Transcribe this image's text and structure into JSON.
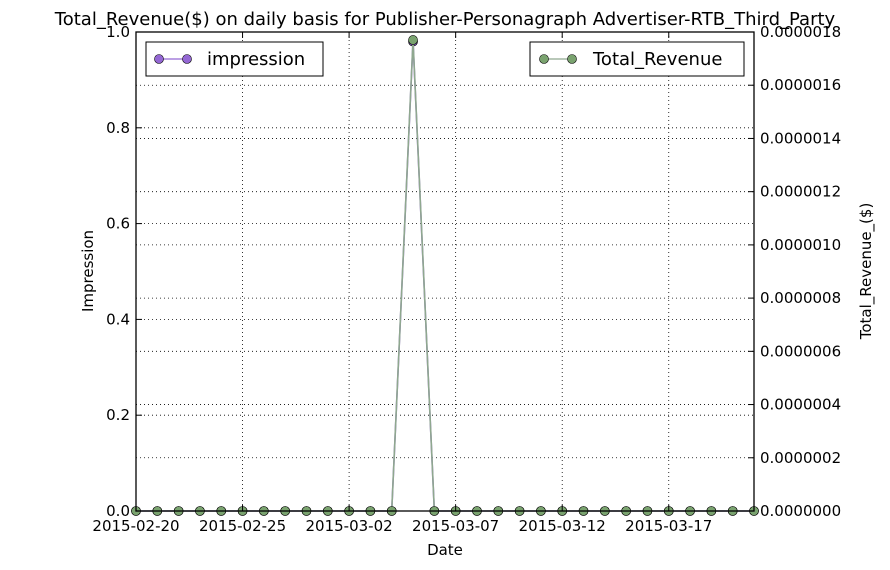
{
  "chart_data": {
    "type": "line",
    "title": "Total_Revenue($) on daily basis for Publisher-Personagraph Advertiser-RTB_Third_Party",
    "xlabel": "Date",
    "ylabel_left": "Impression",
    "ylabel_right": "Total_Revenue_($)",
    "x_tick_labels": [
      "2015-02-20",
      "2015-02-25",
      "2015-03-02",
      "2015-03-07",
      "2015-03-12",
      "2015-03-17"
    ],
    "y_left_tick_labels": [
      "0.0",
      "0.2",
      "0.4",
      "0.6",
      "0.8",
      "1.0"
    ],
    "y_right_tick_labels": [
      "0.0000000",
      "0.0000002",
      "0.0000004",
      "0.0000006",
      "0.0000008",
      "0.0000010",
      "0.0000012",
      "0.0000014",
      "0.0000016",
      "0.0000018"
    ],
    "ylim_left": [
      0,
      1.0
    ],
    "ylim_right": [
      0,
      1.8e-06
    ],
    "xlim": [
      "2015-02-20",
      "2015-03-21"
    ],
    "grid": true,
    "x": [
      "2015-02-20",
      "2015-02-21",
      "2015-02-22",
      "2015-02-23",
      "2015-02-24",
      "2015-02-25",
      "2015-02-26",
      "2015-02-27",
      "2015-02-28",
      "2015-03-01",
      "2015-03-02",
      "2015-03-03",
      "2015-03-04",
      "2015-03-05",
      "2015-03-06",
      "2015-03-07",
      "2015-03-08",
      "2015-03-09",
      "2015-03-10",
      "2015-03-11",
      "2015-03-12",
      "2015-03-13",
      "2015-03-14",
      "2015-03-15",
      "2015-03-16",
      "2015-03-17",
      "2015-03-18",
      "2015-03-19",
      "2015-03-20",
      "2015-03-21"
    ],
    "series": [
      {
        "name": "impression",
        "axis": "left",
        "color": "#9467d4",
        "marker_color": "#9467d4",
        "legend_position": "top-left",
        "values": [
          0,
          0,
          0,
          0,
          0,
          0,
          0,
          0,
          0,
          0,
          0,
          0,
          0,
          0.98,
          0,
          0,
          0,
          0,
          0,
          0,
          0,
          0,
          0,
          0,
          0,
          0,
          0,
          0,
          0,
          0
        ]
      },
      {
        "name": "Total_Revenue",
        "axis": "right",
        "color": "#8fa88f",
        "marker_color": "#7aa36f",
        "legend_position": "top-right",
        "values": [
          0,
          0,
          0,
          0,
          0,
          0,
          0,
          0,
          0,
          0,
          0,
          0,
          0,
          1.77e-06,
          0,
          0,
          0,
          0,
          0,
          0,
          0,
          0,
          0,
          0,
          0,
          0,
          0,
          0,
          0,
          0
        ]
      }
    ]
  }
}
